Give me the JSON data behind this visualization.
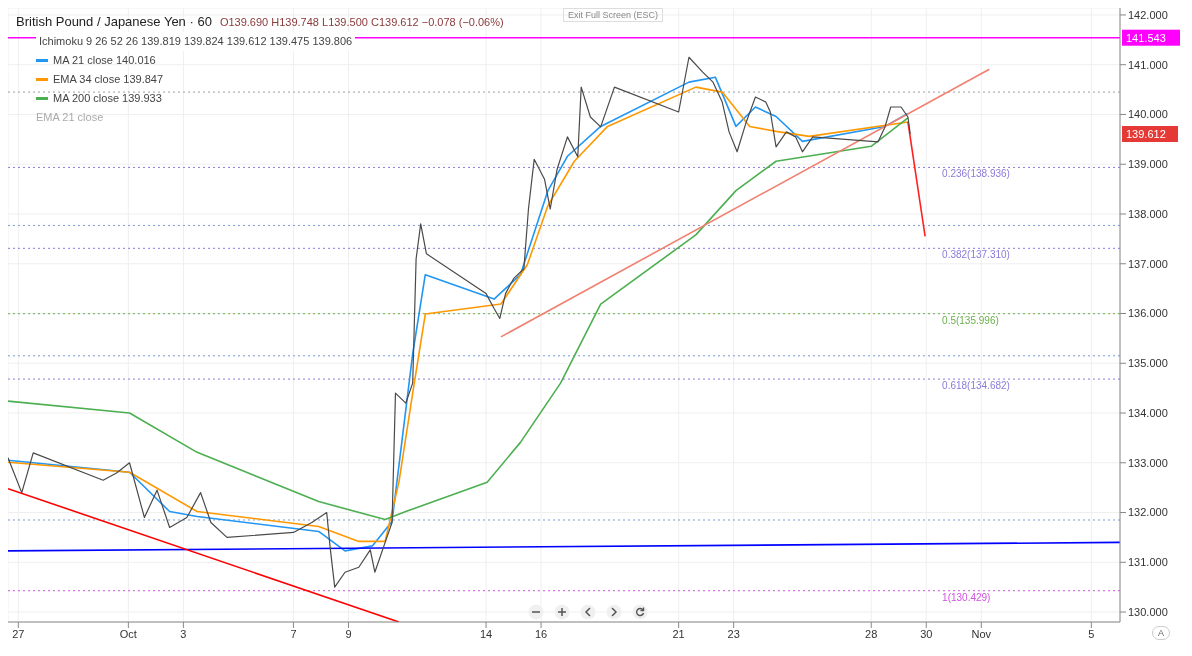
{
  "chart_data": {
    "type": "line",
    "title": "British Pound / Japanese Yen · 60",
    "subtitle": "O139.690 H139.748 L139.500 C139.612 −0.078 (−0.06%)",
    "xlim": [
      "--09-26T15:00",
      "--11-06T01:00"
    ],
    "xticks": [
      {
        "value": "--09-27",
        "label": "27"
      },
      {
        "value": "--10-01",
        "label": "Oct"
      },
      {
        "value": "--10-03",
        "label": "3"
      },
      {
        "value": "--10-07",
        "label": "7"
      },
      {
        "value": "--10-09",
        "label": "9"
      },
      {
        "value": "--10-14",
        "label": "14"
      },
      {
        "value": "--10-16",
        "label": "16"
      },
      {
        "value": "--10-21",
        "label": "21"
      },
      {
        "value": "--10-23",
        "label": "23"
      },
      {
        "value": "--10-28",
        "label": "28"
      },
      {
        "value": "--10-30",
        "label": "30"
      },
      {
        "value": "--11-01",
        "label": "Nov"
      },
      {
        "value": "--11-05",
        "label": "5"
      }
    ],
    "ylim": [
      129.8,
      142.14
    ],
    "yticks": [
      {
        "value": 130,
        "label": "130.000"
      },
      {
        "value": 131,
        "label": "131.000"
      },
      {
        "value": 132,
        "label": "132.000"
      },
      {
        "value": 133,
        "label": "133.000"
      },
      {
        "value": 134,
        "label": "134.000"
      },
      {
        "value": 135,
        "label": "135.000"
      },
      {
        "value": 136,
        "label": "136.000"
      },
      {
        "value": 137,
        "label": "137.000"
      },
      {
        "value": 138,
        "label": "138.000"
      },
      {
        "value": 139,
        "label": "139.000"
      },
      {
        "value": 140,
        "label": "140.000"
      },
      {
        "value": 141,
        "label": "141.000"
      },
      {
        "value": 142,
        "label": "142.000"
      }
    ],
    "grid": true,
    "legend": "top left",
    "series": [
      {
        "color": "#4a4a4a",
        "x": [
          "--09-26T15:00",
          "--09-27T03:00",
          "--09-27T13:00",
          "--09-30T02:00",
          "--09-30T14:00",
          "--10-01T01:00",
          "--10-01T14:00",
          "--10-02T01:00",
          "--10-02T12:00",
          "--10-03T03:00",
          "--10-03T15:00",
          "--10-04T00:00",
          "--10-04T14:00",
          "--10-07T00:00",
          "--10-07T16:00",
          "--10-08T05:00",
          "--10-08T08:00",
          "--10-08T12:00",
          "--10-08T21:00",
          "--10-09T09:00",
          "--10-09T19:00",
          "--10-09T23:00",
          "--10-10T08:00",
          "--10-10T14:00",
          "--10-10T17:00",
          "--10-11T02:00",
          "--10-11T08:00",
          "--10-11T11:00",
          "--10-11T15:00",
          "--10-11T20:00",
          "--10-14T00:00",
          "--10-14T07:00",
          "--10-14T12:00",
          "--10-14T17:00",
          "--10-15T00:00",
          "--10-15T09:00",
          "--10-15T13:00",
          "--10-15T18:00",
          "--10-16T03:00",
          "--10-16T08:00",
          "--10-16T14:00",
          "--10-16T23:00",
          "--10-17T08:00",
          "--10-17T11:00",
          "--10-17T19:00",
          "--10-18T04:00",
          "--10-18T16:00",
          "--10-21T00:00",
          "--10-21T09:00",
          "--10-21T21:00",
          "--10-22T06:00",
          "--10-22T14:00",
          "--10-22T20:00",
          "--10-23T03:00",
          "--10-23T11:00",
          "--10-23T19:00",
          "--10-24T04:00",
          "--10-24T08:00",
          "--10-24T13:00",
          "--10-24T22:00",
          "--10-25T06:00",
          "--10-25T12:00",
          "--10-25T21:00",
          "--10-28T06:00",
          "--10-28T12:00",
          "--10-28T17:00",
          "--10-29T02:00",
          "--10-29T08:00",
          "--10-29T10:00"
        ],
        "values": [
          133.1,
          132.4,
          133.2,
          132.65,
          132.8,
          133.0,
          131.9,
          132.45,
          131.7,
          131.9,
          132.4,
          131.8,
          131.5,
          131.6,
          131.8,
          132.0,
          131.3,
          130.5,
          130.8,
          130.9,
          131.25,
          130.8,
          131.4,
          131.8,
          134.4,
          134.2,
          134.6,
          137.1,
          137.8,
          137.2,
          136.4,
          136.1,
          135.9,
          136.4,
          136.7,
          136.9,
          138.1,
          139.1,
          138.7,
          138.1,
          138.9,
          139.55,
          139.15,
          140.55,
          139.95,
          139.75,
          140.55,
          140.05,
          141.15,
          140.85,
          140.65,
          140.25,
          139.65,
          139.25,
          139.85,
          140.35,
          140.25,
          140.05,
          139.35,
          139.65,
          139.55,
          139.25,
          139.55,
          139.45,
          139.75,
          140.15,
          140.15,
          139.95,
          139.61
        ]
      },
      {
        "name": "MA 21 close 140.016",
        "color": "#2196f3",
        "x": [
          "--09-26T15:00",
          "--10-01T01:00",
          "--10-02T12:00",
          "--10-03T12:00",
          "--10-07T22:00",
          "--10-08T21:00",
          "--10-09T21:00",
          "--10-10T14:00",
          "--10-11T08:00",
          "--10-11T19:00",
          "--10-14T07:00",
          "--10-15T06:00",
          "--10-16T06:00",
          "--10-16T23:00",
          "--10-18T04:00",
          "--10-21T09:00",
          "--10-22T08:00",
          "--10-23T02:00",
          "--10-23T19:00",
          "--10-24T13:00",
          "--10-25T12:00",
          "--10-28T12:00",
          "--10-29T08:00"
        ],
        "values": [
          133.05,
          132.81,
          132.02,
          131.92,
          131.62,
          131.23,
          131.33,
          131.82,
          135.19,
          136.78,
          136.29,
          136.78,
          138.47,
          139.16,
          139.76,
          140.65,
          140.75,
          139.76,
          140.15,
          139.96,
          139.46,
          139.76,
          140.02
        ]
      },
      {
        "name": "EMA 34 close 139.847",
        "color": "#ff9800",
        "x": [
          "--09-26T15:00",
          "--10-01T01:00",
          "--10-03T12:00",
          "--10-07T22:00",
          "--10-09T09:00",
          "--10-10T08:00",
          "--10-10T20:00",
          "--10-11T08:00",
          "--10-11T19:00",
          "--10-14T13:00",
          "--10-15T12:00",
          "--10-16T06:00",
          "--10-17T05:00",
          "--10-18T10:00",
          "--10-21T15:00",
          "--10-22T14:00",
          "--10-23T14:00",
          "--10-24T13:00",
          "--10-25T18:00",
          "--10-29T08:00"
        ],
        "values": [
          133.01,
          132.81,
          132.02,
          131.72,
          131.42,
          131.42,
          132.61,
          134.4,
          135.99,
          136.19,
          136.98,
          138.17,
          139.06,
          139.76,
          140.55,
          140.45,
          139.76,
          139.66,
          139.56,
          139.85
        ]
      },
      {
        "name": "MA 200 close 139.933",
        "color": "#4caf50",
        "x": [
          "--09-26T15:00",
          "--10-01T01:00",
          "--10-03T12:00",
          "--10-07T22:00",
          "--10-10T08:00",
          "--10-11T02:00",
          "--10-14T01:00",
          "--10-15T06:00",
          "--10-16T17:00",
          "--10-18T04:00",
          "--10-21T15:00",
          "--10-23T02:00",
          "--10-24T13:00",
          "--10-28T00:00",
          "--10-29T08:00"
        ],
        "values": [
          134.24,
          134.0,
          133.21,
          132.22,
          131.86,
          132.02,
          132.61,
          133.41,
          134.6,
          136.19,
          137.58,
          138.47,
          139.06,
          139.36,
          139.93
        ]
      },
      {
        "color": "#0000ff",
        "x": [
          "--09-26T15:00",
          "--11-06T01:00"
        ],
        "values": [
          131.23,
          131.4
        ]
      },
      {
        "color": "#ff0000",
        "x": [
          "--09-26T15:00",
          "--10-10T20:00"
        ],
        "values": [
          132.48,
          129.8
        ]
      },
      {
        "color": "#f08070",
        "x": [
          "--10-14T13:00",
          "--11-01T07:00"
        ],
        "values": [
          135.53,
          140.91
        ]
      },
      {
        "color": "#ff2020",
        "x": [
          "--10-29T08:00",
          "--10-29T23:00"
        ],
        "values": [
          139.85,
          137.55
        ]
      }
    ],
    "ref_lines": [
      {
        "axis": "y",
        "value": 141.543,
        "label": "141.543",
        "color": "#ff00ff",
        "line_style": "solid"
      },
      {
        "axis": "y",
        "value": 138.936,
        "label": "0.236(138.936)",
        "color": "#8c7ad8",
        "line_style": "dotted"
      },
      {
        "axis": "y",
        "value": 137.31,
        "label": "0.382(137.310)",
        "color": "#8c7ad8",
        "line_style": "dotted"
      },
      {
        "axis": "y",
        "value": 135.996,
        "label": "0.5(135.996)",
        "color": "#6ab04c",
        "line_style": "dotted"
      },
      {
        "axis": "y",
        "value": 134.682,
        "label": "0.618(134.682)",
        "color": "#8c7ad8",
        "line_style": "dotted"
      },
      {
        "axis": "y",
        "value": 130.429,
        "label": "1(130.429)",
        "color": "#d050e0",
        "line_style": "dotted"
      },
      {
        "axis": "y",
        "value": 140.45,
        "color": "#9aa0a8",
        "line_style": "dotted"
      },
      {
        "axis": "y",
        "value": 137.77,
        "color": "#7a9ad0",
        "line_style": "dotted"
      },
      {
        "axis": "y",
        "value": 135.15,
        "color": "#7a9ad0",
        "line_style": "dotted"
      },
      {
        "axis": "y",
        "value": 131.85,
        "color": "#7a9ad0",
        "line_style": "dotted"
      }
    ],
    "annotations": [
      "Ichimoku 9 26 52 26 139.819 139.824 139.612 139.475 139.806",
      "EMA 21 close",
      "Exit Full Screen (ESC)",
      "A",
      "139.612"
    ]
  }
}
